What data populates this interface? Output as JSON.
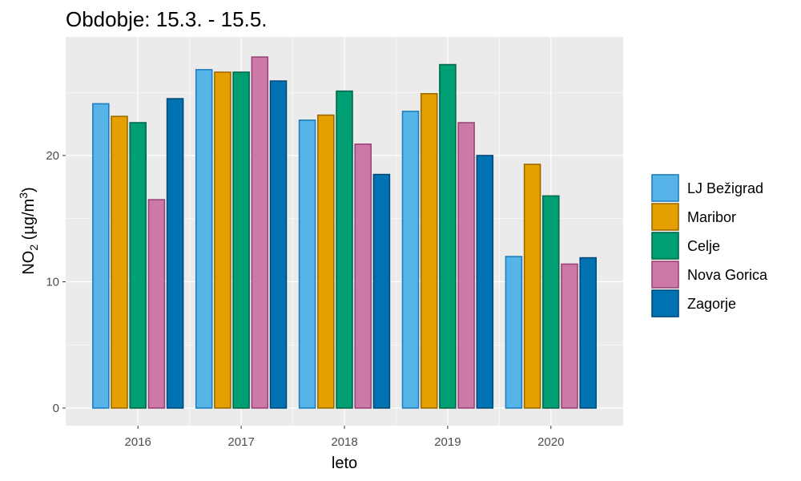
{
  "chart_data": {
    "type": "bar",
    "title": "Obdobje: 15.3. - 15.5.",
    "xlabel": "leto",
    "ylabel": {
      "prefix": "NO",
      "sub": "2",
      "unit_open": " (µg/m",
      "sup": "3",
      "unit_close": ")"
    },
    "categories": [
      "2016",
      "2017",
      "2018",
      "2019",
      "2020"
    ],
    "y_ticks": [
      "0",
      "10",
      "20"
    ],
    "ylim": [
      0,
      28.5
    ],
    "grid": true,
    "legend_position": "right",
    "series": [
      {
        "name": "LJ Bežigrad",
        "fill": "#56B4E9",
        "stroke": "#1F7FBF",
        "values": [
          24.1,
          26.8,
          22.8,
          23.5,
          12.0
        ]
      },
      {
        "name": "Maribor",
        "fill": "#E69F00",
        "stroke": "#9C6B00",
        "values": [
          23.1,
          26.6,
          23.2,
          24.9,
          19.3
        ]
      },
      {
        "name": "Celje",
        "fill": "#009E73",
        "stroke": "#006A4A",
        "values": [
          22.6,
          26.6,
          25.1,
          27.2,
          16.8
        ]
      },
      {
        "name": "Nova Gorica",
        "fill": "#CC79A7",
        "stroke": "#9A4578",
        "values": [
          16.5,
          27.8,
          20.9,
          22.6,
          11.4
        ]
      },
      {
        "name": "Zagorje",
        "fill": "#0072B2",
        "stroke": "#004A78",
        "values": [
          24.5,
          25.9,
          18.5,
          20.0,
          11.9
        ]
      }
    ]
  }
}
